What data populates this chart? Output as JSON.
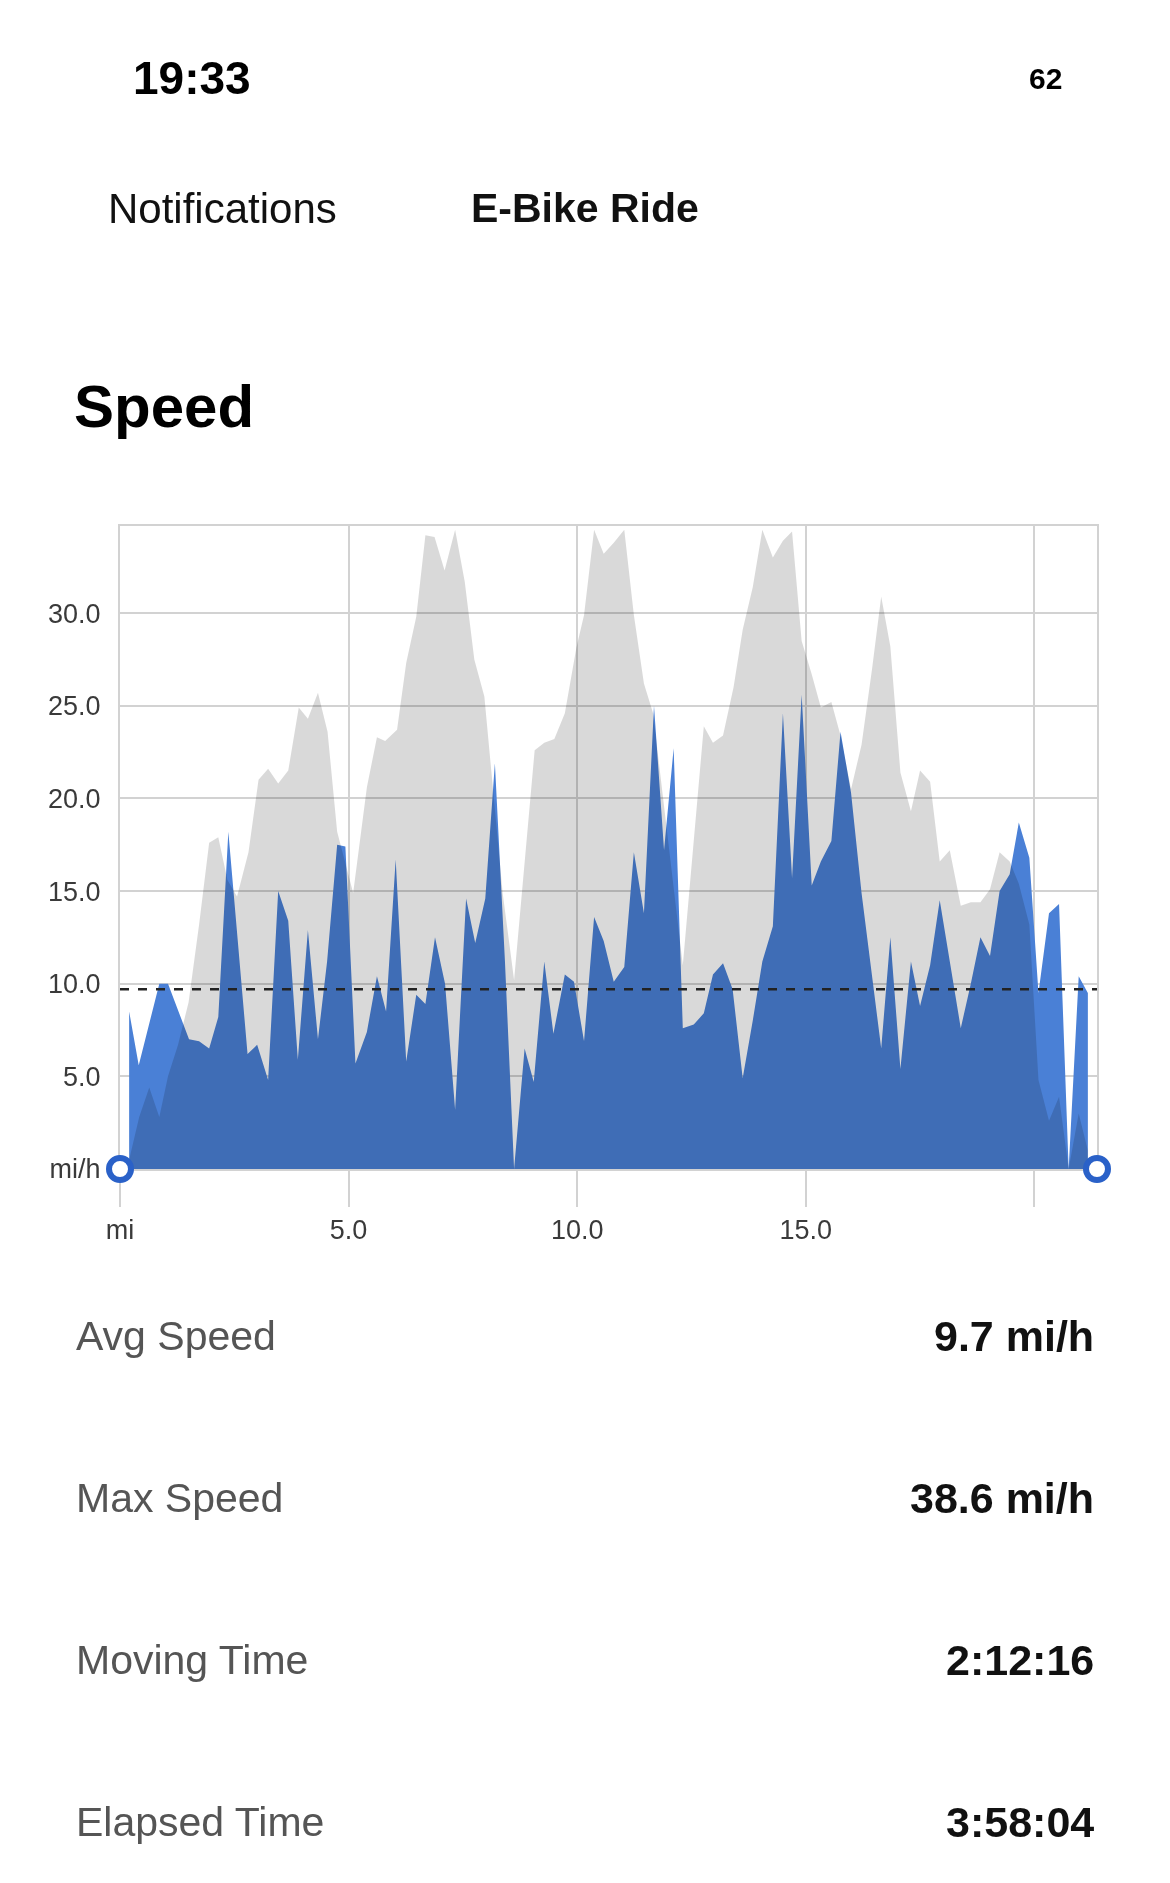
{
  "chart_data": {
    "type": "area",
    "title": "Speed",
    "xlim": [
      0,
      21.37
    ],
    "xticks": [
      {
        "value": 0,
        "label": "mi"
      },
      {
        "value": 5,
        "label": "5.0"
      },
      {
        "value": 10,
        "label": "10.0"
      },
      {
        "value": 15,
        "label": "15.0"
      },
      {
        "value": 20,
        "label": null
      }
    ],
    "ylim": [
      0,
      34.7
    ],
    "yticks": [
      {
        "value": 0,
        "label": "mi/h"
      },
      {
        "value": 5,
        "label": "5.0"
      },
      {
        "value": 10,
        "label": "10.0"
      },
      {
        "value": 15,
        "label": "15.0"
      },
      {
        "value": 20,
        "label": "20.0"
      },
      {
        "value": 25,
        "label": "25.0"
      },
      {
        "value": 30,
        "label": "30.0"
      }
    ],
    "grid": true,
    "series": [
      {
        "color": "#4a80d6",
        "x": [
          0.2,
          0.41,
          0.86,
          1.05,
          1.51,
          1.73,
          1.95,
          2.15,
          2.37,
          2.79,
          3.0,
          3.24,
          3.46,
          3.68,
          3.89,
          4.11,
          4.33,
          4.53,
          4.75,
          4.93,
          5.15,
          5.4,
          5.62,
          5.82,
          6.03,
          6.26,
          6.48,
          6.68,
          6.89,
          7.11,
          7.33,
          7.57,
          7.77,
          7.99,
          8.2,
          8.42,
          8.62,
          8.85,
          9.05,
          9.28,
          9.48,
          9.73,
          9.93,
          10.15,
          10.37,
          10.58,
          10.8,
          11.03,
          11.24,
          11.46,
          11.68,
          11.9,
          12.11,
          12.31,
          12.55,
          12.77,
          12.97,
          13.19,
          13.4,
          13.62,
          13.84,
          14.05,
          14.28,
          14.5,
          14.7,
          14.91,
          15.13,
          15.33,
          15.56,
          15.76,
          15.99,
          16.22,
          16.65,
          16.85,
          17.07,
          17.3,
          17.5,
          17.72,
          17.93,
          18.39,
          18.61,
          18.82,
          19.03,
          19.24,
          19.46,
          19.66,
          19.89,
          20.09,
          20.32,
          20.54,
          20.75,
          20.97,
          21.17
        ],
        "values": [
          8.5,
          5.6,
          10.0,
          10.0,
          7.0,
          6.9,
          6.5,
          8.2,
          18.2,
          6.2,
          6.7,
          4.8,
          15.0,
          13.4,
          5.9,
          12.9,
          7.0,
          11.2,
          17.5,
          17.4,
          5.7,
          7.4,
          10.4,
          8.5,
          16.7,
          5.8,
          9.4,
          8.9,
          12.5,
          10.0,
          3.2,
          14.6,
          12.2,
          14.6,
          21.9,
          11.2,
          0,
          6.5,
          4.7,
          11.2,
          7.3,
          10.5,
          10.1,
          6.9,
          13.6,
          12.3,
          10.1,
          10.9,
          17.1,
          13.8,
          25.0,
          17.2,
          22.7,
          7.6,
          7.8,
          8.4,
          10.5,
          11.1,
          9.7,
          4.9,
          8.0,
          11.2,
          13.1,
          24.6,
          15.7,
          25.6,
          15.3,
          16.6,
          17.7,
          23.6,
          20.3,
          14.9,
          6.5,
          12.5,
          5.4,
          11.2,
          8.8,
          11.0,
          14.5,
          7.6,
          10.0,
          12.5,
          11.5,
          15.0,
          15.9,
          18.7,
          16.8,
          9.5,
          13.8,
          14.3,
          0,
          10.4,
          9.5
        ]
      },
      {
        "color": "#d9d9d9",
        "x": [
          0.2,
          0.42,
          0.64,
          0.86,
          1.05,
          1.27,
          1.5,
          1.73,
          1.95,
          2.15,
          2.35,
          2.56,
          2.81,
          3.03,
          3.24,
          3.46,
          3.68,
          3.91,
          4.11,
          4.33,
          4.54,
          4.75,
          5.1,
          5.4,
          5.62,
          5.8,
          6.06,
          6.26,
          6.48,
          6.68,
          6.88,
          7.1,
          7.33,
          7.54,
          7.75,
          7.97,
          8.37,
          8.62,
          9.07,
          9.28,
          9.5,
          9.73,
          9.98,
          10.15,
          10.37,
          10.58,
          10.8,
          11.03,
          11.24,
          11.46,
          11.66,
          12.31,
          12.77,
          12.97,
          13.19,
          13.42,
          13.62,
          13.84,
          14.05,
          14.28,
          14.5,
          14.7,
          14.91,
          15.13,
          15.33,
          15.56,
          15.76,
          15.99,
          16.22,
          16.45,
          16.65,
          16.85,
          17.07,
          17.3,
          17.5,
          17.72,
          17.93,
          18.15,
          18.39,
          18.61,
          18.82,
          19.03,
          19.24,
          19.46,
          19.66,
          19.89,
          20.09,
          20.32,
          20.54,
          20.75,
          20.97,
          21.17
        ],
        "values": [
          0.5,
          2.8,
          4.4,
          2.8,
          5.0,
          6.7,
          9.0,
          13.2,
          17.6,
          17.9,
          15.6,
          14.7,
          17.1,
          21.0,
          21.6,
          20.8,
          21.5,
          24.9,
          24.3,
          25.7,
          23.6,
          18.2,
          14.9,
          20.6,
          23.3,
          23.1,
          23.7,
          27.3,
          29.8,
          34.2,
          34.1,
          32.3,
          34.5,
          31.7,
          27.5,
          25.5,
          14.9,
          10.2,
          22.6,
          23.0,
          23.2,
          24.6,
          28.1,
          29.9,
          34.5,
          33.2,
          33.8,
          34.5,
          29.9,
          26.2,
          24.6,
          11.0,
          23.9,
          23.0,
          23.4,
          26.0,
          29.1,
          31.4,
          34.5,
          33.0,
          33.9,
          34.4,
          28.5,
          26.7,
          24.9,
          25.2,
          23.4,
          20.5,
          22.9,
          27.0,
          30.9,
          28.2,
          21.4,
          19.3,
          21.5,
          20.9,
          16.6,
          17.2,
          14.2,
          14.4,
          14.4,
          15.1,
          17.1,
          16.6,
          15.4,
          13.2,
          4.8,
          2.6,
          3.9,
          0,
          3.0,
          1.0
        ]
      },
      {
        "type": "scatter",
        "color": "#2a61c8",
        "marker": "circle",
        "x": [
          0,
          21.37
        ],
        "values": [
          0,
          0
        ]
      }
    ],
    "ref_lines": [
      {
        "axis": "y",
        "value": 9.7,
        "color": "#222222",
        "line_style": "dashed"
      }
    ],
    "annotations": [
      "19:33",
      "62",
      "Notifications",
      "E-Bike Ride",
      "Avg Speed",
      "9.7 mi/h",
      "Max Speed",
      "38.6 mi/h",
      "Moving Time",
      "2:12:16",
      "Elapsed Time",
      "3:58:04"
    ]
  }
}
